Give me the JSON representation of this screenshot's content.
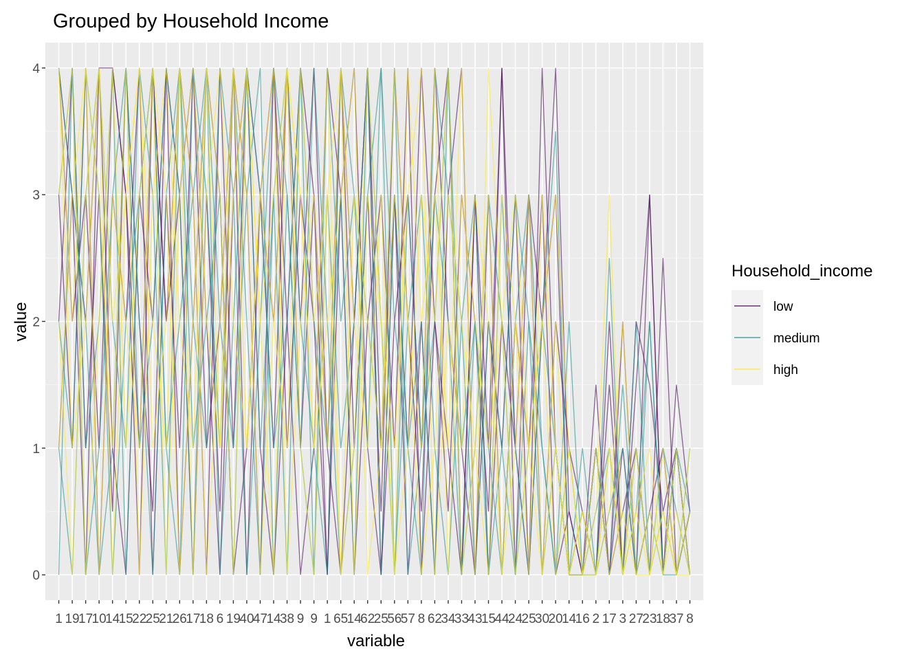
{
  "chart_data": {
    "type": "line",
    "title": "Grouped by Household Income",
    "xlabel": "variable",
    "ylabel": "value",
    "ylim": [
      -0.2,
      4.2
    ],
    "y_ticks": [
      "0",
      "1",
      "2",
      "3",
      "4"
    ],
    "grid": true,
    "legend_position": "right",
    "legend": {
      "title": "Household_income",
      "entries": [
        {
          "label": "low",
          "color": "#440154"
        },
        {
          "label": "medium",
          "color": "#21908C"
        },
        {
          "label": "high",
          "color": "#FDE725"
        }
      ]
    },
    "categories": [
      "11",
      "19",
      "17",
      "10",
      "14",
      "15",
      "22",
      "25",
      "21",
      "26",
      "17",
      "18",
      "6",
      "19",
      "40",
      "47",
      "14",
      "38",
      "9",
      "9",
      "1",
      "65",
      "14",
      "62",
      "25",
      "56",
      "57",
      "8",
      "62",
      "34",
      "33",
      "43",
      "15",
      "44",
      "24",
      "25",
      "30",
      "20",
      "14",
      "16",
      "2",
      "17",
      "3",
      "27",
      "23",
      "18",
      "37",
      "8"
    ],
    "tick_labels_visible": [
      "1",
      "19",
      "17",
      "10",
      "14",
      "15",
      "22",
      "25",
      "21",
      "26",
      "17",
      "18",
      "6",
      "19",
      "40",
      "47",
      "14",
      "38",
      "9",
      "9",
      "1",
      "65",
      "14",
      "62",
      "25",
      "56",
      "57",
      "8",
      "62",
      "34",
      "33",
      "43",
      "15",
      "44",
      "24",
      "25",
      "30",
      "20",
      "14",
      "16",
      "2",
      "17",
      "3",
      "27",
      "23",
      "18",
      "37",
      "8"
    ],
    "series": [
      {
        "name": "low",
        "color": "#440154",
        "lines": [
          [
            4,
            3,
            0,
            4,
            4,
            3,
            1,
            4,
            2,
            4,
            3,
            0,
            4,
            1,
            4,
            3,
            1,
            4,
            2,
            4,
            1,
            4,
            2,
            4,
            0,
            3,
            1,
            4,
            2,
            0.5,
            3,
            2,
            0.5,
            4,
            1,
            0,
            2,
            3,
            0,
            0.5,
            0,
            1.5,
            0,
            2,
            1.5,
            0.5,
            1,
            0
          ],
          [
            2,
            4,
            1,
            3,
            0.5,
            4,
            2,
            0.5,
            4,
            3,
            0,
            3,
            0.5,
            4,
            0,
            3,
            2,
            4,
            1,
            3,
            0,
            4,
            1,
            3,
            0.5,
            4,
            2,
            0.5,
            3,
            4,
            0,
            3,
            1,
            4,
            0,
            3,
            2,
            4,
            0.5,
            0,
            1.5,
            0,
            1,
            0,
            3,
            0,
            1.5,
            0.5
          ],
          [
            3,
            1,
            4,
            0,
            3,
            2,
            4,
            0,
            3,
            1,
            4,
            2,
            0,
            3,
            4,
            1,
            0,
            2,
            4,
            3,
            1,
            0,
            2,
            4,
            1,
            3,
            0,
            2,
            0,
            3,
            4,
            0,
            2,
            1,
            3,
            0,
            4,
            1,
            0,
            0,
            1,
            0,
            0.5,
            1,
            0,
            2.5,
            0,
            0.5
          ],
          [
            1,
            3,
            2,
            4,
            1,
            0,
            3,
            2,
            4,
            0,
            2,
            4,
            3,
            0,
            1,
            3,
            4,
            2,
            0,
            1,
            4,
            3,
            0,
            2,
            3,
            1,
            4,
            0,
            2,
            1,
            0,
            3,
            0,
            2,
            1,
            3,
            0,
            2,
            1,
            0.5,
            0,
            2,
            0,
            1.5,
            3,
            0,
            1,
            0
          ],
          [
            4,
            2,
            3,
            1,
            4,
            3,
            0,
            4,
            2,
            3,
            4,
            1,
            2,
            4,
            3,
            0,
            4,
            1,
            3,
            2,
            0,
            3,
            4,
            1,
            0,
            2,
            3,
            1,
            4,
            2,
            1,
            0,
            3,
            0,
            2,
            1,
            3,
            0,
            0.5,
            0,
            1,
            0,
            2,
            0,
            0.5,
            1,
            0,
            0.5
          ]
        ]
      },
      {
        "name": "medium",
        "color": "#21908C",
        "lines": [
          [
            3,
            4,
            1,
            2,
            4,
            0,
            3,
            4,
            1,
            2,
            3,
            4,
            0,
            2,
            4,
            1,
            3,
            0,
            4,
            2,
            1,
            3,
            0,
            4,
            2,
            0,
            3,
            1,
            2,
            4,
            0,
            1,
            3,
            2,
            0,
            1,
            2,
            3.5,
            0,
            1,
            0,
            2.5,
            0,
            0.5,
            2,
            0,
            1,
            0
          ],
          [
            1,
            0,
            3,
            4,
            2,
            1,
            4,
            3,
            0,
            4,
            2,
            1,
            4,
            3,
            0,
            2,
            4,
            3,
            1,
            0,
            4,
            2,
            3,
            1,
            4,
            0,
            2,
            3,
            1,
            0,
            2,
            3,
            0,
            1,
            3,
            2,
            0,
            1,
            0,
            0.5,
            0,
            1,
            0,
            2,
            0,
            1,
            0.5,
            0
          ],
          [
            4,
            3,
            2,
            0,
            1,
            4,
            2,
            0,
            3,
            4,
            1,
            2,
            3,
            0,
            4,
            3,
            1,
            2,
            4,
            0,
            3,
            1,
            2,
            4,
            0,
            3,
            1,
            2,
            0,
            4,
            1,
            2,
            0,
            3,
            1,
            0,
            2,
            1,
            0,
            0,
            1,
            0,
            1.5,
            0,
            0.5,
            0,
            1,
            0.5
          ],
          [
            2,
            1,
            4,
            3,
            0,
            2,
            3,
            4,
            1,
            0,
            4,
            3,
            1,
            4,
            2,
            0,
            3,
            4,
            2,
            1,
            0,
            4,
            3,
            2,
            1,
            4,
            0,
            1,
            3,
            2,
            0,
            2,
            1,
            0,
            2,
            3,
            1,
            0,
            2,
            0,
            0.5,
            1,
            0,
            1,
            0,
            0.5,
            0,
            1
          ],
          [
            0,
            4,
            0,
            1,
            3,
            4,
            1,
            2,
            4,
            3,
            0,
            4,
            2,
            1,
            3,
            4,
            0,
            3,
            1,
            4,
            2,
            0,
            1,
            3,
            4,
            2,
            1,
            0,
            4,
            3,
            2,
            0,
            2,
            1,
            0,
            2,
            1,
            0,
            1,
            0,
            0,
            0.5,
            1,
            0,
            2,
            0,
            0,
            0.5
          ]
        ]
      },
      {
        "name": "high",
        "color": "#FDE725",
        "lines": [
          [
            4,
            2,
            4,
            3,
            1,
            4,
            0,
            3,
            4,
            2,
            1,
            4,
            3,
            0,
            4,
            2,
            3,
            4,
            1,
            0,
            3,
            4,
            2,
            1,
            3,
            0,
            4,
            2,
            3,
            1,
            4,
            0,
            4,
            2,
            3,
            1,
            2,
            0,
            1,
            0,
            0.5,
            3,
            0,
            1,
            0,
            0.5,
            0,
            1
          ],
          [
            3,
            4,
            0,
            2,
            4,
            1,
            3,
            4,
            0,
            3,
            4,
            2,
            1,
            4,
            3,
            0,
            2,
            4,
            3,
            1,
            4,
            0,
            3,
            2,
            1,
            4,
            2,
            0,
            1,
            3,
            2,
            1,
            0,
            3,
            2,
            0,
            3,
            1,
            0,
            0.5,
            0,
            1,
            0,
            0.5,
            1,
            0,
            0.5,
            0
          ],
          [
            2,
            0,
            3,
            4,
            2,
            3,
            4,
            1,
            2,
            4,
            0,
            3,
            4,
            2,
            1,
            3,
            4,
            0,
            2,
            3,
            1,
            4,
            0,
            3,
            2,
            1,
            3,
            4,
            0,
            2,
            1,
            3,
            2,
            0,
            1,
            3,
            0,
            2,
            0,
            0,
            1,
            0,
            0.5,
            0,
            0,
            1,
            0,
            0.5
          ],
          [
            1,
            3,
            4,
            0,
            3,
            2,
            1,
            4,
            3,
            0,
            2,
            4,
            1,
            3,
            4,
            2,
            0,
            4,
            3,
            1,
            2,
            3,
            4,
            0,
            1,
            3,
            2,
            1,
            4,
            0,
            3,
            2,
            1,
            2,
            0,
            1,
            2,
            3,
            1,
            0,
            0,
            0.5,
            2,
            0,
            0.5,
            0,
            1,
            0
          ],
          [
            4,
            1,
            2,
            4,
            0,
            3,
            4,
            2,
            1,
            4,
            3,
            0,
            2,
            4,
            1,
            3,
            2,
            1,
            4,
            2,
            3,
            0,
            1,
            4,
            2,
            0,
            1,
            3,
            2,
            4,
            0,
            1,
            3,
            0,
            2,
            1,
            0,
            1,
            0,
            0.5,
            0,
            1,
            0,
            0.5,
            0,
            0.5,
            0,
            0
          ]
        ]
      }
    ]
  }
}
